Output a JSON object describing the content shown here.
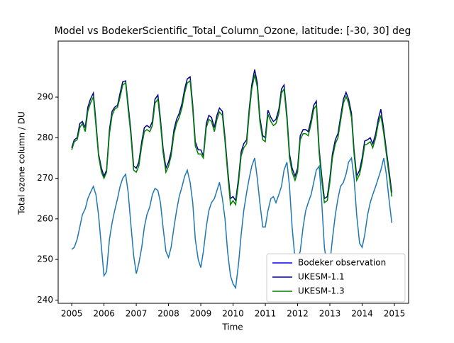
{
  "chart_data": {
    "type": "line",
    "title": "Model vs BodekerScientific_Total_Column_Ozone, latitude: [-30, 30] deg",
    "x_label": "Time",
    "y_label": "Total ozone column / DU",
    "x": [
      2005,
      2005.08,
      2005.17,
      2005.25,
      2005.33,
      2005.42,
      2005.5,
      2005.58,
      2005.67,
      2005.75,
      2005.83,
      2005.92,
      2006,
      2006.08,
      2006.17,
      2006.25,
      2006.33,
      2006.42,
      2006.5,
      2006.58,
      2006.67,
      2006.75,
      2006.83,
      2006.92,
      2007,
      2007.08,
      2007.17,
      2007.25,
      2007.33,
      2007.42,
      2007.5,
      2007.58,
      2007.67,
      2007.75,
      2007.83,
      2007.92,
      2008,
      2008.08,
      2008.17,
      2008.25,
      2008.33,
      2008.42,
      2008.5,
      2008.58,
      2008.67,
      2008.75,
      2008.83,
      2008.92,
      2009,
      2009.08,
      2009.17,
      2009.25,
      2009.33,
      2009.42,
      2009.5,
      2009.58,
      2009.67,
      2009.75,
      2009.83,
      2009.92,
      2010,
      2010.08,
      2010.17,
      2010.25,
      2010.33,
      2010.42,
      2010.5,
      2010.58,
      2010.67,
      2010.75,
      2010.83,
      2010.92,
      2011,
      2011.08,
      2011.17,
      2011.25,
      2011.33,
      2011.42,
      2011.5,
      2011.58,
      2011.67,
      2011.75,
      2011.83,
      2011.92,
      2012,
      2012.08,
      2012.17,
      2012.25,
      2012.33,
      2012.42,
      2012.5,
      2012.58,
      2012.67,
      2012.75,
      2012.83,
      2012.92,
      2013,
      2013.08,
      2013.17,
      2013.25,
      2013.33,
      2013.42,
      2013.5,
      2013.58,
      2013.67,
      2013.75,
      2013.83,
      2013.92,
      2014,
      2014.08,
      2014.17,
      2014.25,
      2014.33,
      2014.42,
      2014.5,
      2014.58,
      2014.67,
      2014.75,
      2014.83,
      2014.92
    ],
    "series": [
      {
        "name": "Bodeker observation",
        "color": "#1f77b4",
        "legend_color": "#0000ff",
        "values": [
          252.5,
          253,
          255,
          258,
          261,
          262.5,
          265,
          266.5,
          268,
          266,
          261,
          253,
          246,
          247,
          255,
          259,
          262,
          265,
          268,
          270,
          271,
          266.5,
          259,
          251,
          246.5,
          249,
          253,
          258,
          261,
          263,
          266,
          267.5,
          267,
          264,
          258,
          252,
          250.5,
          253,
          258,
          262,
          265.5,
          268,
          270.5,
          272,
          269,
          264,
          255,
          250,
          248,
          252,
          258,
          262,
          264,
          265,
          267,
          269,
          265,
          260,
          252,
          246,
          244,
          243,
          249,
          256,
          262,
          266.5,
          270,
          273,
          275,
          270,
          264,
          258,
          258,
          262,
          265,
          265.5,
          264,
          266,
          268,
          272,
          274,
          268,
          258,
          250,
          250,
          252,
          258,
          262,
          264,
          266,
          269,
          272,
          273,
          264,
          253,
          248,
          249,
          255,
          261,
          265,
          268,
          269,
          271,
          274,
          275,
          270,
          261,
          254,
          253,
          256,
          261,
          264,
          266,
          268,
          270,
          272,
          275,
          271,
          265,
          259
        ]
      },
      {
        "name": "UKESM-1.1",
        "color": "#00008b",
        "values": [
          277.5,
          279.5,
          280,
          283.5,
          284,
          282.5,
          287.5,
          289.5,
          291,
          284,
          276,
          272.5,
          270.5,
          272,
          282,
          286.5,
          287.5,
          288,
          291,
          293.8,
          294,
          288,
          282,
          273,
          272.5,
          274,
          279,
          282.5,
          283,
          282.5,
          284,
          289.5,
          290.5,
          284.5,
          277.5,
          272.5,
          274,
          276.5,
          282,
          284.5,
          286,
          288.5,
          292,
          294.5,
          295,
          288,
          279,
          277,
          277,
          275.5,
          283.5,
          285.5,
          285,
          282.5,
          285.5,
          287.3,
          286.5,
          280,
          272.5,
          265,
          265.5,
          264.5,
          270,
          276.5,
          278.5,
          279.5,
          287,
          293,
          296.8,
          293.5,
          285,
          280.5,
          280,
          286.8,
          285,
          284,
          284.5,
          287,
          292,
          293,
          285.5,
          276,
          272.5,
          270.5,
          272.5,
          280.5,
          282,
          282,
          281.5,
          284.5,
          288,
          289,
          277,
          270.5,
          265,
          265.5,
          270,
          276,
          279.5,
          281,
          285,
          289.5,
          291.2,
          289.5,
          286,
          277,
          270.5,
          272,
          275,
          279.2,
          279.5,
          280,
          278.5,
          281,
          284.5,
          287,
          282,
          277,
          272,
          266.5
        ]
      },
      {
        "name": "UKESM-1.3",
        "color": "#008000",
        "values": [
          277,
          279,
          279.5,
          282.5,
          283.5,
          281.5,
          286.5,
          288.5,
          290,
          283,
          275.5,
          271.5,
          270,
          271.5,
          281,
          285.5,
          287,
          287.5,
          290,
          293,
          293.5,
          287,
          281,
          272,
          271.5,
          273,
          278,
          281.5,
          282,
          281.5,
          283,
          288.5,
          289.5,
          283.5,
          276.5,
          271.5,
          273,
          275.5,
          281,
          283.5,
          285,
          287.5,
          291,
          293.5,
          294,
          287,
          278,
          276,
          276,
          275,
          282.5,
          284.5,
          284,
          281.5,
          284.5,
          286.3,
          285.5,
          279,
          271.5,
          263.5,
          264.5,
          263.5,
          269,
          275.5,
          277.5,
          278.5,
          286,
          292,
          295.5,
          292.5,
          284,
          279.5,
          279,
          285.8,
          284,
          283,
          283.5,
          286,
          291,
          292,
          284.5,
          275,
          271.5,
          269.5,
          271.5,
          279.5,
          281,
          281,
          280.5,
          283.5,
          287,
          288,
          276,
          269.5,
          264,
          264.5,
          269,
          275,
          278.5,
          280,
          284,
          288.5,
          290.2,
          288.5,
          285,
          276,
          269.5,
          271,
          274,
          278.2,
          278.5,
          279,
          277.5,
          280,
          283.5,
          285.5,
          281,
          276,
          271,
          265.5
        ]
      }
    ],
    "xlim": [
      2004.58,
      2015.44
    ],
    "xticks": [
      2005,
      2006,
      2007,
      2008,
      2009,
      2010,
      2011,
      2012,
      2013,
      2014,
      2015
    ],
    "ylim": [
      239.2,
      303.8
    ],
    "yticks": [
      240,
      250,
      260,
      270,
      280,
      290
    ],
    "legend": "lower right"
  }
}
